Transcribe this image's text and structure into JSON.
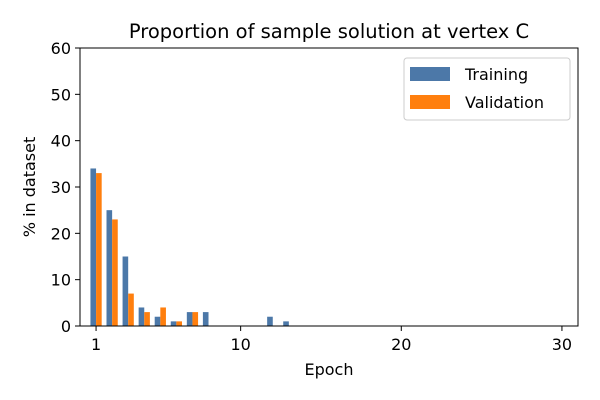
{
  "chart_data": {
    "type": "bar",
    "title": "Proportion of sample solution at vertex C",
    "xlabel": "Epoch",
    "ylabel": "% in dataset",
    "xlim": [
      0,
      31
    ],
    "ylim": [
      0,
      60
    ],
    "xticks": [
      1,
      10,
      20,
      30
    ],
    "yticks": [
      0,
      10,
      20,
      30,
      40,
      50,
      60
    ],
    "legend_position": "top-right",
    "grid": false,
    "series": [
      {
        "name": "Training",
        "color": "#4c78a8",
        "points": [
          {
            "x": 1,
            "y": 34
          },
          {
            "x": 2,
            "y": 25
          },
          {
            "x": 3,
            "y": 15
          },
          {
            "x": 4,
            "y": 4
          },
          {
            "x": 5,
            "y": 2
          },
          {
            "x": 6,
            "y": 1
          },
          {
            "x": 7,
            "y": 3
          },
          {
            "x": 8,
            "y": 3
          },
          {
            "x": 12,
            "y": 2
          },
          {
            "x": 13,
            "y": 1
          }
        ]
      },
      {
        "name": "Validation",
        "color": "#ff7f0e",
        "points": [
          {
            "x": 1,
            "y": 33
          },
          {
            "x": 2,
            "y": 23
          },
          {
            "x": 3,
            "y": 7
          },
          {
            "x": 4,
            "y": 3
          },
          {
            "x": 5,
            "y": 4
          },
          {
            "x": 6,
            "y": 1
          },
          {
            "x": 7,
            "y": 3
          }
        ]
      }
    ]
  }
}
